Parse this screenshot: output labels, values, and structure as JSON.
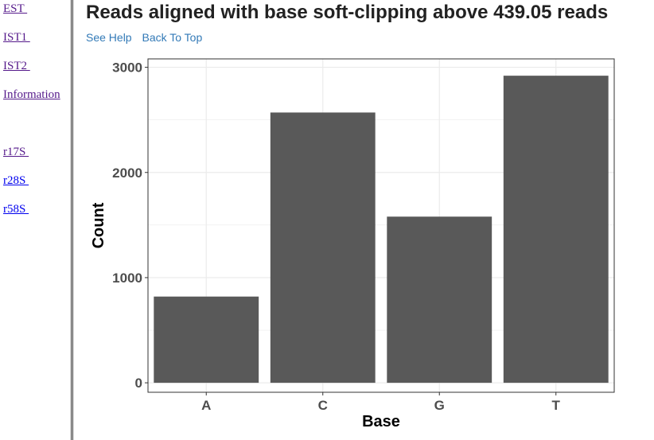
{
  "sidebar": {
    "links": [
      {
        "label": "EST ",
        "visited": true
      },
      {
        "label": "IST1 ",
        "visited": true
      },
      {
        "label": "IST2 ",
        "visited": true
      },
      {
        "label": "Information",
        "visited": true
      },
      {
        "label": "r17S ",
        "visited": true
      },
      {
        "label": "r28S ",
        "visited": false
      },
      {
        "label": "r58S ",
        "visited": false
      }
    ]
  },
  "page": {
    "title": "Reads aligned with base soft-clipping above 439.05 reads",
    "see_help": "See Help",
    "back_to_top": "Back To Top"
  },
  "chart_data": {
    "type": "bar",
    "title": "",
    "xlabel": "Base",
    "ylabel": "Count",
    "categories": [
      "A",
      "C",
      "G",
      "T"
    ],
    "values": [
      820,
      2570,
      1580,
      2920
    ],
    "ylim": [
      -90,
      3080
    ],
    "yticks": [
      0,
      1000,
      2000,
      3000
    ],
    "ytick_labels": [
      "0",
      "1000",
      "2000",
      "3000"
    ],
    "grid": true,
    "bar_color": "#595959",
    "panel_border": "#333333",
    "grid_color": "#ebebeb"
  }
}
